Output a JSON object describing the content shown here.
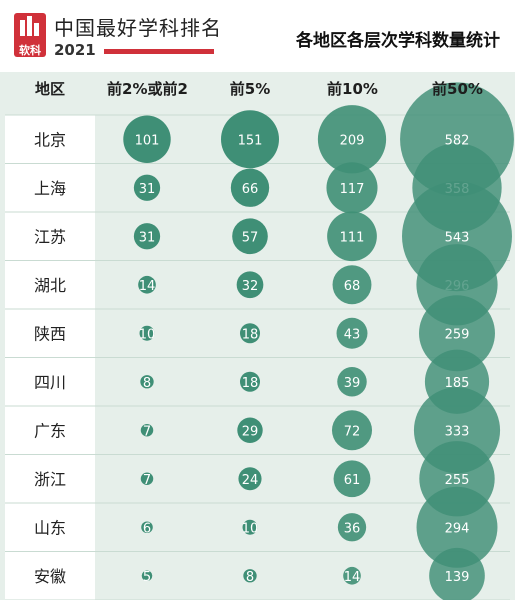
{
  "header": {
    "logo_mark": "软科",
    "brand": "中国最好学科排名",
    "year": "2021",
    "subtitle": "各地区各层次学科数量统计"
  },
  "colors": {
    "accent": "#d0313a",
    "bubble": "#3f8f76",
    "region_col": "#ffffff",
    "stripe": "#e6efea"
  },
  "chart_data": {
    "type": "table",
    "columns": [
      "地区",
      "前2%或前2",
      "前5%",
      "前10%",
      "前50%"
    ],
    "rows": [
      {
        "region": "北京",
        "values": [
          101,
          151,
          209,
          582
        ]
      },
      {
        "region": "上海",
        "values": [
          31,
          66,
          117,
          358
        ]
      },
      {
        "region": "江苏",
        "values": [
          31,
          57,
          111,
          543
        ]
      },
      {
        "region": "湖北",
        "values": [
          14,
          32,
          68,
          296
        ]
      },
      {
        "region": "陕西",
        "values": [
          10,
          18,
          43,
          259
        ]
      },
      {
        "region": "四川",
        "values": [
          8,
          18,
          39,
          185
        ]
      },
      {
        "region": "广东",
        "values": [
          7,
          29,
          72,
          333
        ]
      },
      {
        "region": "浙江",
        "values": [
          7,
          24,
          61,
          255
        ]
      },
      {
        "region": "山东",
        "values": [
          6,
          10,
          36,
          294
        ]
      },
      {
        "region": "安徽",
        "values": [
          5,
          8,
          14,
          139
        ]
      }
    ]
  }
}
